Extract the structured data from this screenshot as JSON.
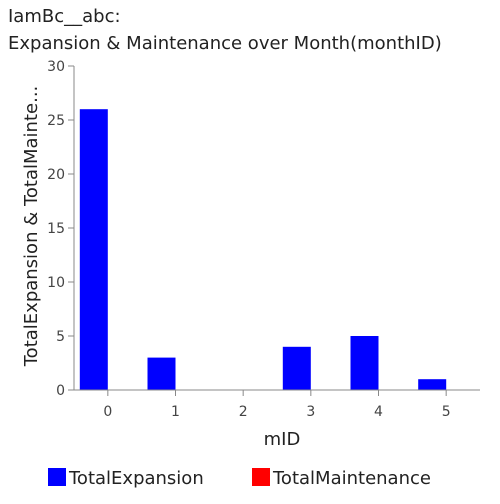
{
  "chart_data": {
    "type": "bar",
    "title": "IamBc__abc:",
    "subtitle": "Expansion & Maintenance over Month(monthID)",
    "xlabel": "mID",
    "ylabel": "TotalExpansion & TotalMainte...",
    "categories": [
      "0",
      "1",
      "2",
      "3",
      "4",
      "5"
    ],
    "series": [
      {
        "name": "TotalExpansion",
        "color": "#0000ff",
        "values": [
          26,
          3,
          0,
          4,
          5,
          1
        ]
      },
      {
        "name": "TotalMaintenance",
        "color": "#ff0000",
        "values": [
          0,
          0,
          0,
          0,
          0,
          0
        ]
      }
    ],
    "yticks": [
      "0",
      "5",
      "10",
      "15",
      "20",
      "25",
      "30"
    ],
    "ylim": [
      0,
      30
    ],
    "grid": false,
    "legend_position": "bottom"
  }
}
